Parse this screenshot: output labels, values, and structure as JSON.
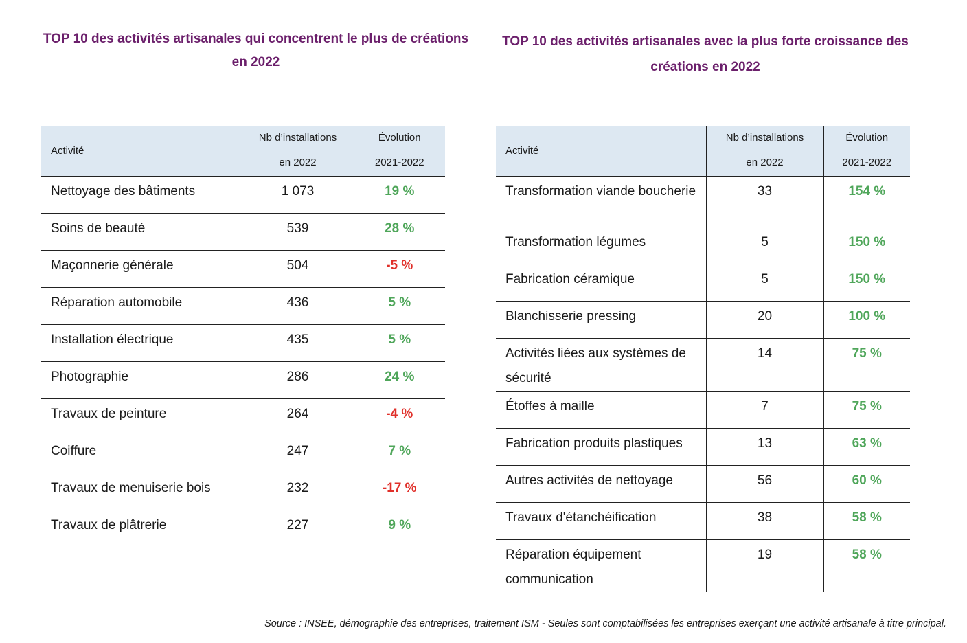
{
  "left": {
    "title": "TOP 10 des activités artisanales qui concentrent le plus de créations en 2022",
    "headers": {
      "activity": "Activité",
      "count_line1": "Nb d’installations",
      "count_line2": "en 2022",
      "evolution_line1": "Évolution",
      "evolution_line2": "2021-2022"
    },
    "rows": [
      {
        "activity": "Nettoyage des bâtiments",
        "count": "1 073",
        "evolution": "19 %"
      },
      {
        "activity": "Soins de beauté",
        "count": "539",
        "evolution": "28 %"
      },
      {
        "activity": "Maçonnerie générale",
        "count": "504",
        "evolution": "-5 %"
      },
      {
        "activity": "Réparation automobile",
        "count": "436",
        "evolution": "5 %"
      },
      {
        "activity": "Installation électrique",
        "count": "435",
        "evolution": "5 %"
      },
      {
        "activity": "Photographie",
        "count": "286",
        "evolution": "24 %"
      },
      {
        "activity": "Travaux de peinture",
        "count": "264",
        "evolution": "-4 %"
      },
      {
        "activity": "Coiffure",
        "count": "247",
        "evolution": "7 %"
      },
      {
        "activity": "Travaux de menuiserie bois",
        "count": "232",
        "evolution": "-17 %"
      },
      {
        "activity": "Travaux de plâtrerie",
        "count": "227",
        "evolution": "9 %"
      }
    ]
  },
  "right": {
    "title": "TOP 10 des activités artisanales avec la plus forte croissance des créations en 2022",
    "headers": {
      "activity": "Activité",
      "count_line1": "Nb d’installations",
      "count_line2": "en 2022",
      "evolution_line1": "Évolution",
      "evolution_line2": "2021-2022"
    },
    "rows": [
      {
        "activity": "Transformation viande boucherie",
        "count": "33",
        "evolution": "154 %"
      },
      {
        "activity": "Transformation légumes",
        "count": "5",
        "evolution": "150 %"
      },
      {
        "activity": "Fabrication céramique",
        "count": "5",
        "evolution": "150 %"
      },
      {
        "activity": "Blanchisserie pressing",
        "count": "20",
        "evolution": "100 %"
      },
      {
        "activity": "Activités liées aux systèmes de sécurité",
        "count": "14",
        "evolution": "75 %"
      },
      {
        "activity": "Étoffes à maille",
        "count": "7",
        "evolution": "75 %"
      },
      {
        "activity": "Fabrication produits plastiques",
        "count": "13",
        "evolution": "63 %"
      },
      {
        "activity": "Autres activités de nettoyage",
        "count": "56",
        "evolution": "60 %"
      },
      {
        "activity": "Travaux d'étanchéification",
        "count": "38",
        "evolution": "58 %"
      },
      {
        "activity": "Réparation équipement communication",
        "count": "19",
        "evolution": "58 %"
      }
    ]
  },
  "colors": {
    "title": "#6b1f6b",
    "header_bg": "#dde8f2",
    "positive": "#4fa65a",
    "negative": "#e0302a"
  },
  "source": "Source : INSEE, démographie des entreprises, traitement ISM - Seules sont comptabilisées les entreprises exerçant une activité artisanale à titre principal."
}
